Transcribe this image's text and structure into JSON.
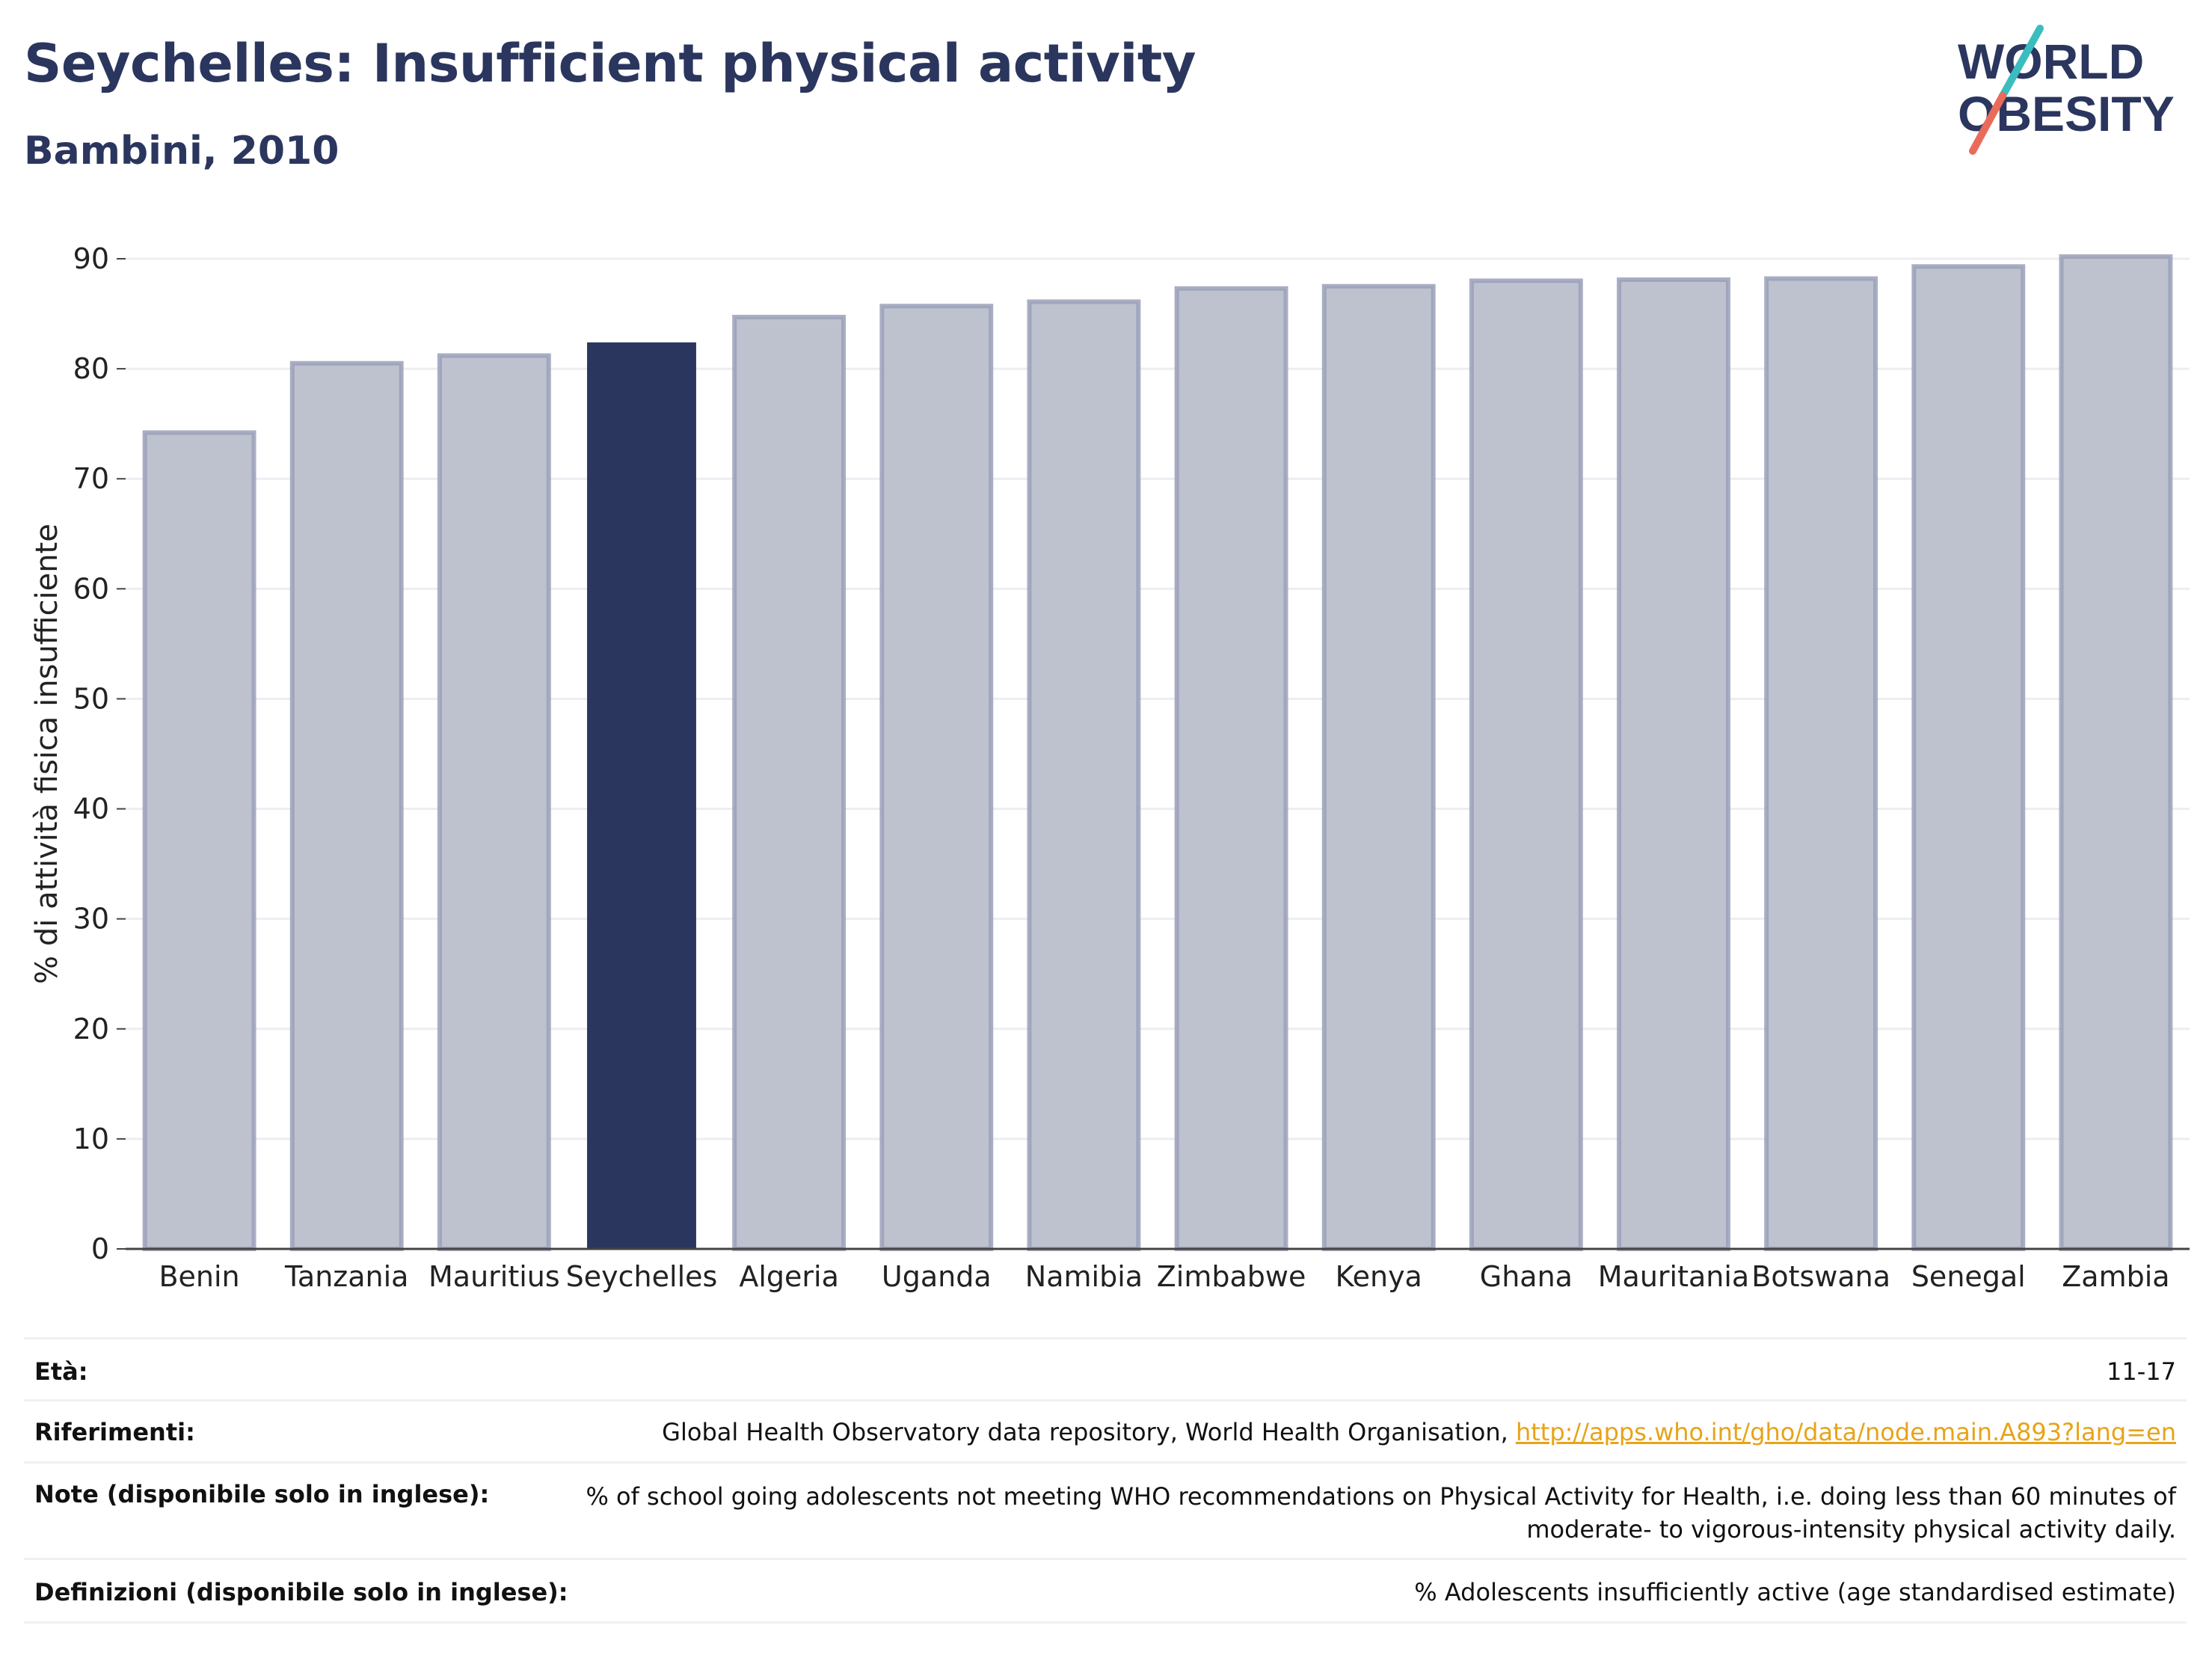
{
  "header": {
    "title": "Seychelles: Insufficient physical activity",
    "subtitle": "Bambini, 2010",
    "logo_line1": "WORLD",
    "logo_line2": "OBESITY"
  },
  "colors": {
    "highlight": "#2b365e",
    "bar": "#bec2cf",
    "bar_edge": "#9aa0b8",
    "title": "#2b365e",
    "link": "#e8a317",
    "logo_teal": "#3bbdbf",
    "logo_coral": "#e96c5a"
  },
  "chart_data": {
    "type": "bar",
    "title": "Seychelles: Insufficient physical activity",
    "subtitle": "Bambini, 2010",
    "ylabel": "% di attività fisica insufficiente",
    "xlabel": "",
    "ylim": [
      0,
      90
    ],
    "yticks": [
      0,
      10,
      20,
      30,
      40,
      50,
      60,
      70,
      80,
      90
    ],
    "grid": true,
    "highlight": "Seychelles",
    "categories": [
      "Benin",
      "Tanzania",
      "Mauritius",
      "Seychelles",
      "Algeria",
      "Uganda",
      "Namibia",
      "Zimbabwe",
      "Kenya",
      "Ghana",
      "Mauritania",
      "Botswana",
      "Senegal",
      "Zambia"
    ],
    "values": [
      74.2,
      80.5,
      81.2,
      82.4,
      84.7,
      85.7,
      86.1,
      87.3,
      87.5,
      88.0,
      88.1,
      88.2,
      89.3,
      90.2
    ]
  },
  "info_table": [
    {
      "label": "Età:",
      "value": "11-17"
    },
    {
      "label": "Riferimenti:",
      "value": "Global Health Observatory data repository, World Health Organisation, ",
      "link": "http://apps.who.int/gho/data/node.main.A893?lang=en"
    },
    {
      "label": "Note (disponibile solo in inglese):",
      "value_line1": "% of school going adolescents not meeting WHO recommendations on Physical Activity for Health, i.e. doing less than 60 minutes of",
      "value_line2": "moderate- to vigorous-intensity physical activity daily."
    },
    {
      "label": "Definizioni (disponibile solo in inglese):",
      "value": "% Adolescents insufficiently active (age standardised estimate)"
    }
  ]
}
